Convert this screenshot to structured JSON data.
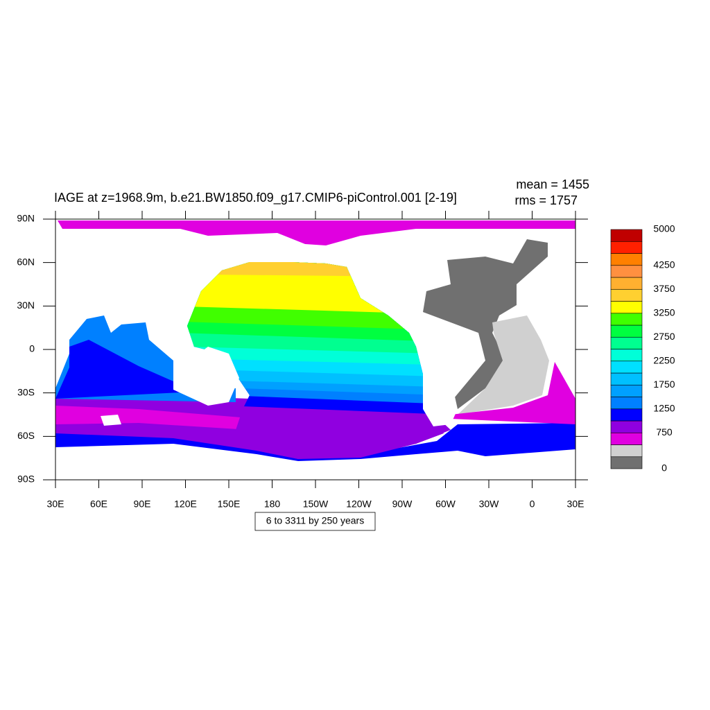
{
  "chart_data": {
    "type": "contour",
    "title": "IAGE at z=1968.9m, b.e21.BW1850.f09_g17.CMIP6-piControl.001 [2-19]",
    "stats": [
      "mean = 1455",
      "rms = 1757"
    ],
    "contour_info": "6 to 3311 by 250 years",
    "xlim": [
      30,
      390
    ],
    "xticks": [
      {
        "value": 30,
        "label": "30E"
      },
      {
        "value": 60,
        "label": "60E"
      },
      {
        "value": 90,
        "label": "90E"
      },
      {
        "value": 120,
        "label": "120E"
      },
      {
        "value": 150,
        "label": "150E"
      },
      180,
      {
        "value": 210,
        "label": "150W"
      },
      {
        "value": 240,
        "label": "120W"
      },
      {
        "value": 270,
        "label": "90W"
      },
      {
        "value": 300,
        "label": "60W"
      },
      {
        "value": 330,
        "label": "30W"
      },
      {
        "value": 360,
        "label": "0"
      },
      {
        "value": 390,
        "label": "30E"
      }
    ],
    "ylim": [
      -90,
      90
    ],
    "yticks": [
      {
        "value": 90,
        "label": "90N"
      },
      {
        "value": 60,
        "label": "60N"
      },
      {
        "value": 30,
        "label": "30N"
      },
      0,
      {
        "value": -30,
        "label": "30S"
      },
      {
        "value": -60,
        "label": "60S"
      },
      {
        "value": -90,
        "label": "90S"
      }
    ],
    "colorbar": {
      "colors": [
        "#707070",
        "#d0d0d0",
        "#e000e0",
        "#9000e0",
        "#0000ff",
        "#0080ff",
        "#00a0ff",
        "#00c0ff",
        "#00e0ff",
        "#00ffd8",
        "#00ff90",
        "#00ff40",
        "#40ff00",
        "#ffff00",
        "#ffd030",
        "#ffb030",
        "#ff9040",
        "#ff8000",
        "#ff2000",
        "#c00000"
      ],
      "labels": [
        0,
        750,
        1250,
        1750,
        2250,
        2750,
        3250,
        3750,
        4250,
        5000
      ]
    }
  }
}
